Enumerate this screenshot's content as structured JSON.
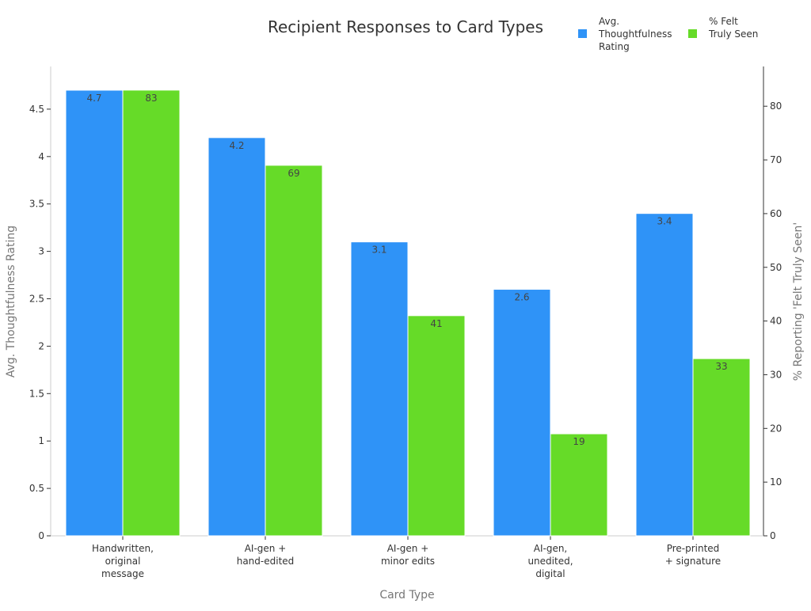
{
  "chart_data": {
    "type": "bar",
    "title": "Recipient Responses to Card Types",
    "xlabel": "Card Type",
    "ylabel_left": "Avg. Thoughtfulness Rating",
    "ylabel_right": "% Reporting 'Felt Truly Seen'",
    "categories": [
      [
        "Handwritten,",
        "original",
        "message"
      ],
      [
        "AI-gen +",
        "hand-edited"
      ],
      [
        "AI-gen +",
        "minor edits"
      ],
      [
        "AI-gen,",
        "unedited,",
        "digital"
      ],
      [
        "Pre-printed",
        "+ signature"
      ]
    ],
    "series": [
      {
        "name": [
          "Avg.",
          "Thoughtfulness",
          "Rating"
        ],
        "axis": "left",
        "color": "#2f93f7",
        "values": [
          4.7,
          4.2,
          3.1,
          2.6,
          3.4
        ],
        "labels": [
          "4.7",
          "4.2",
          "3.1",
          "2.6",
          "3.4"
        ]
      },
      {
        "name": [
          "% Felt",
          "Truly Seen"
        ],
        "axis": "right",
        "color": "#66db28",
        "values": [
          83,
          69,
          41,
          19,
          33
        ],
        "labels": [
          "83",
          "69",
          "41",
          "19",
          "33"
        ]
      }
    ],
    "left_axis": {
      "ylim": [
        0,
        4.95
      ],
      "ticks": [
        0,
        0.5,
        1,
        1.5,
        2,
        2.5,
        3,
        3.5,
        4,
        4.5
      ],
      "tick_labels": [
        "0",
        "0.5",
        "1",
        "1.5",
        "2",
        "2.5",
        "3",
        "3.5",
        "4",
        "4.5"
      ]
    },
    "right_axis": {
      "ylim": [
        0,
        87.4
      ],
      "ticks": [
        0,
        10,
        20,
        30,
        40,
        50,
        60,
        70,
        80
      ],
      "tick_labels": [
        "0",
        "10",
        "20",
        "30",
        "40",
        "50",
        "60",
        "70",
        "80"
      ]
    },
    "legend_position": "top-right",
    "grid": false
  }
}
